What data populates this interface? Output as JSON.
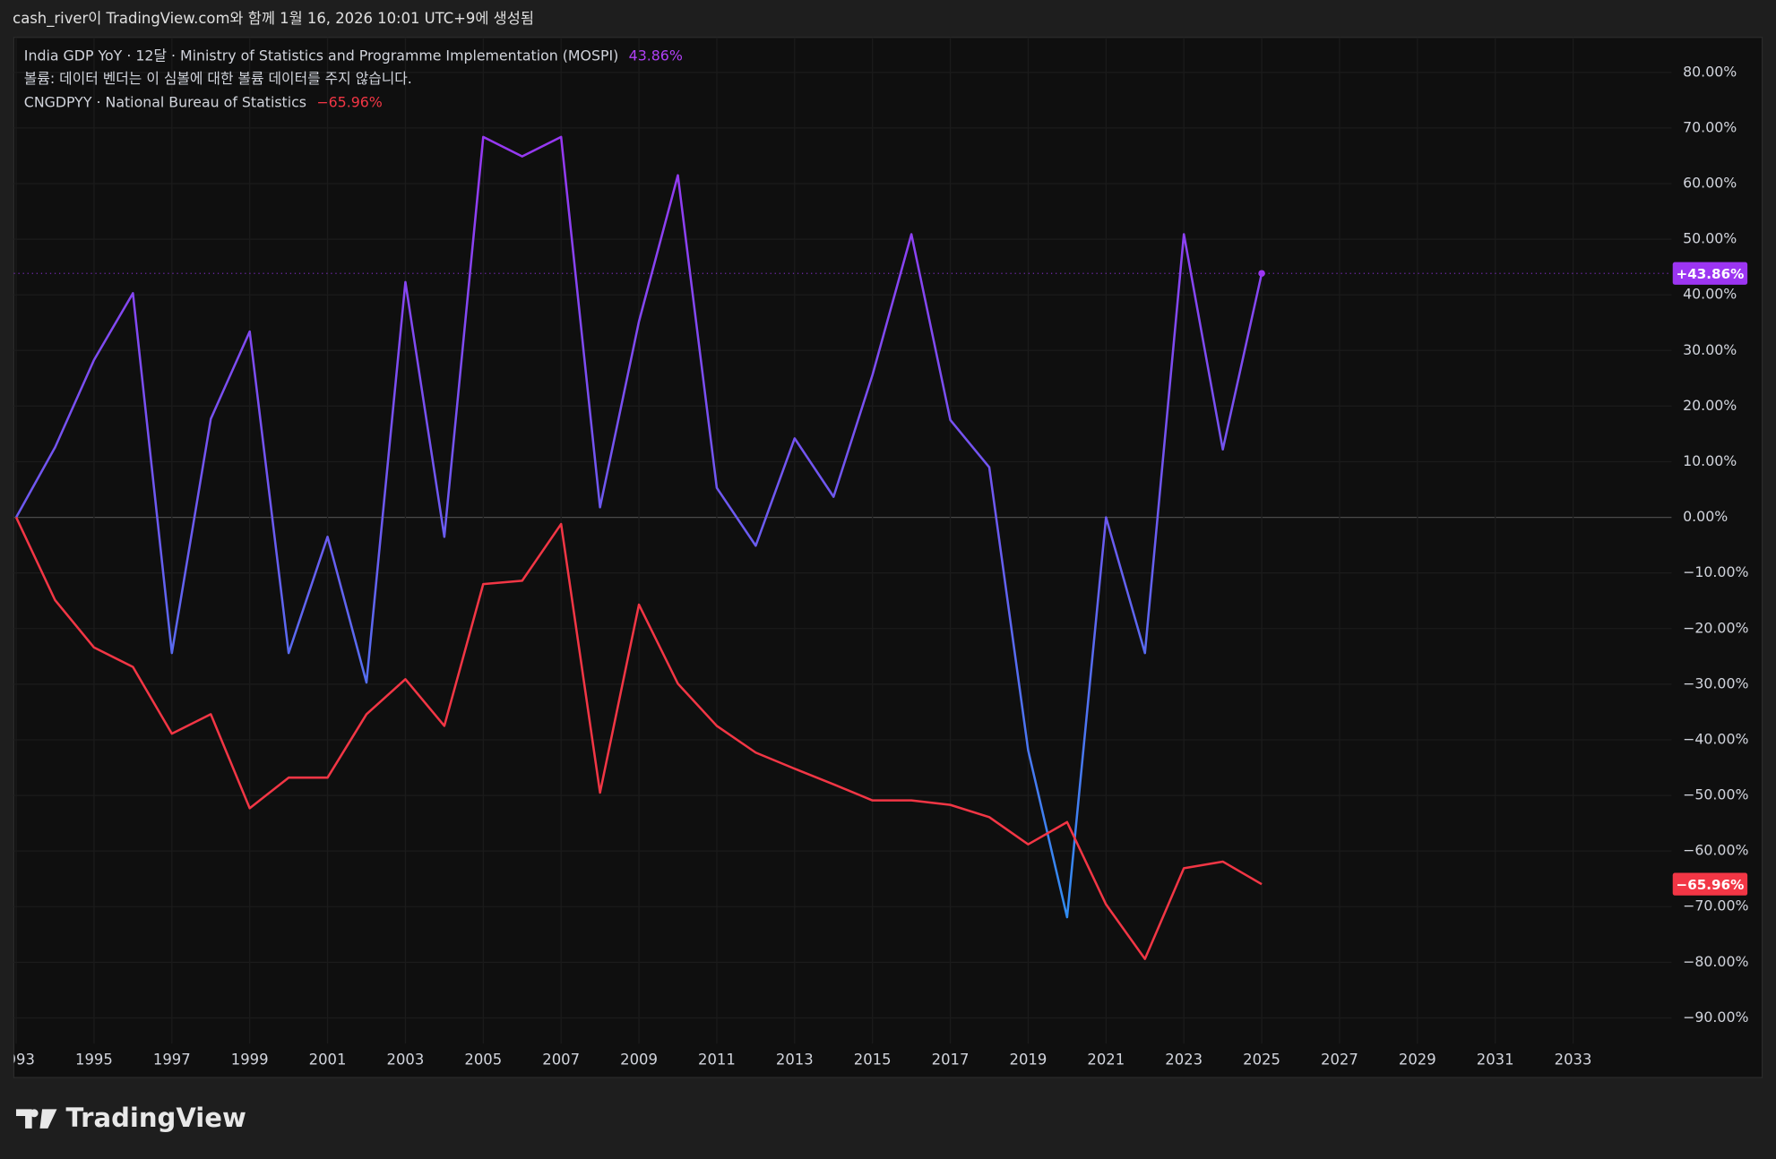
{
  "header": "cash_river이 TradingView.com와 함께 1월 16, 2026 10:01 UTC+9에 생성됨",
  "footer": "TradingView",
  "chart_data": {
    "type": "line",
    "legend": {
      "volume_note": "볼륨: 데이터 벤더는 이 심볼에 대한 볼륨 데이터를 주지 않습니다."
    },
    "x": [
      1993,
      1994,
      1995,
      1996,
      1997,
      1998,
      1999,
      2000,
      2001,
      2002,
      2003,
      2004,
      2005,
      2006,
      2007,
      2008,
      2009,
      2010,
      2011,
      2012,
      2013,
      2014,
      2015,
      2016,
      2017,
      2018,
      2019,
      2020,
      2021,
      2022,
      2023,
      2024,
      2025
    ],
    "series": [
      {
        "name": "India GDP YoY · 12달 · Ministry of Statistics and Programme Implementation (MOSPI)",
        "legend_value": "43.86%",
        "badge": "+43.86%",
        "color": "#9c35f2",
        "gradient_colors": [
          "#a22ff3",
          "#6a5cf0",
          "#1e9cf2"
        ],
        "values": [
          0,
          12.6,
          28.3,
          40.3,
          -24.4,
          17.7,
          33.4,
          -24.4,
          -3.5,
          -29.7,
          42.3,
          -3.5,
          68.4,
          64.9,
          68.4,
          1.8,
          35.2,
          61.5,
          5.3,
          -5.1,
          14.2,
          3.7,
          25.6,
          50.9,
          17.5,
          9.0,
          -41.9,
          -71.9,
          0,
          -24.4,
          50.9,
          12.2,
          43.86
        ]
      },
      {
        "name": "CNGDPYY · National Bureau of Statistics",
        "legend_value": "−65.96%",
        "badge": "−65.96%",
        "color": "#f23645",
        "values": [
          0,
          -14.9,
          -23.4,
          -26.9,
          -38.9,
          -35.4,
          -52.3,
          -46.8,
          -46.8,
          -35.4,
          -29.1,
          -37.5,
          -12.0,
          -11.4,
          -1.2,
          -49.5,
          -15.7,
          -29.9,
          -37.5,
          -42.3,
          -45.2,
          -48.0,
          -50.9,
          -50.9,
          -51.7,
          -53.9,
          -58.8,
          -54.8,
          -69.6,
          -79.4,
          -63.1,
          -61.9,
          -65.96
        ]
      }
    ],
    "xlim": [
      1992.94,
      2035.53
    ],
    "xticks": [
      1993,
      1995,
      1997,
      1999,
      2001,
      2003,
      2005,
      2007,
      2009,
      2011,
      2013,
      2015,
      2017,
      2019,
      2021,
      2023,
      2025,
      2027,
      2029,
      2031,
      2033
    ],
    "ylim": [
      -93.8,
      86.3
    ],
    "yticks": [
      {
        "value": 80,
        "label": "80.00%"
      },
      {
        "value": 70,
        "label": "70.00%"
      },
      {
        "value": 60,
        "label": "60.00%"
      },
      {
        "value": 50,
        "label": "50.00%"
      },
      {
        "value": 40,
        "label": "40.00%"
      },
      {
        "value": 30,
        "label": "30.00%"
      },
      {
        "value": 20,
        "label": "20.00%"
      },
      {
        "value": 10,
        "label": "10.00%"
      },
      {
        "value": 0,
        "label": "0.00%"
      },
      {
        "value": -10,
        "label": "−10.00%"
      },
      {
        "value": -20,
        "label": "−20.00%"
      },
      {
        "value": -30,
        "label": "−30.00%"
      },
      {
        "value": -40,
        "label": "−40.00%"
      },
      {
        "value": -50,
        "label": "−50.00%"
      },
      {
        "value": -60,
        "label": "−60.00%"
      },
      {
        "value": -70,
        "label": "−70.00%"
      },
      {
        "value": -80,
        "label": "−80.00%"
      },
      {
        "value": -90,
        "label": "−90.00%"
      }
    ],
    "grid": true
  }
}
